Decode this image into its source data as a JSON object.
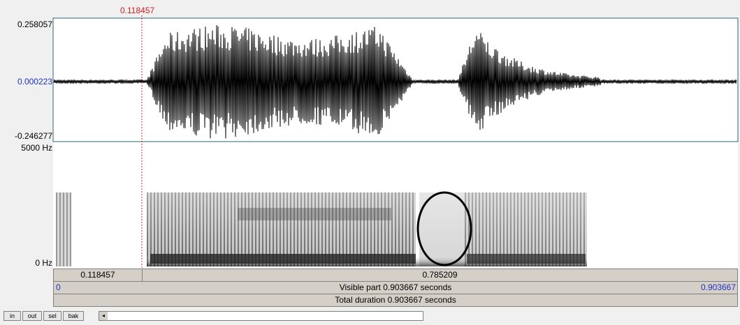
{
  "cursor": {
    "time": "0.118457"
  },
  "waveform": {
    "max": "0.258057",
    "mid": "0.000223",
    "min": "-0.246277"
  },
  "spectrogram": {
    "max": "5000 Hz",
    "min": "0 Hz"
  },
  "selection": {
    "left": "0.118457",
    "right": "0.785209"
  },
  "visible": {
    "start": "0",
    "label": "Visible part 0.903667 seconds",
    "end": "0.903667"
  },
  "total": {
    "label": "Total duration 0.903667 seconds"
  },
  "buttons": [
    "in",
    "out",
    "sel",
    "bak"
  ]
}
